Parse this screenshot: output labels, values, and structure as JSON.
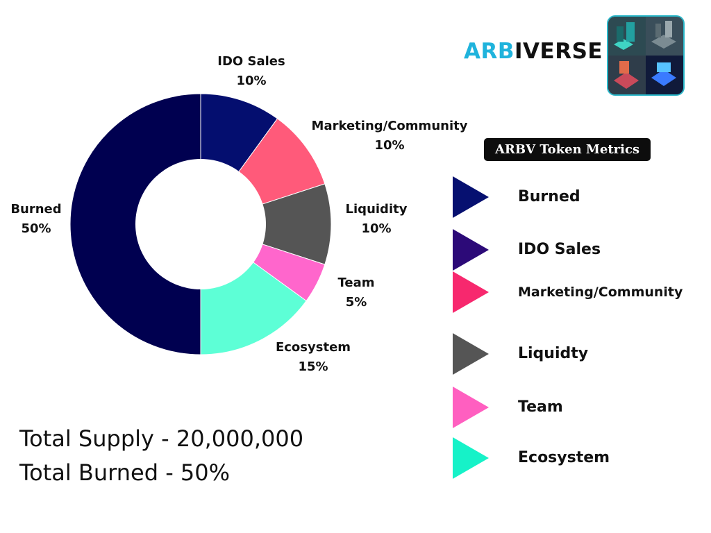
{
  "brand": {
    "part1": "ARB",
    "part2": "IVERSE"
  },
  "legend": {
    "title": "ARBV Token Metrics",
    "items": [
      {
        "label": "Burned",
        "color": "#061070"
      },
      {
        "label": "IDO Sales",
        "color": "#2c0a78"
      },
      {
        "label": "Marketing/Community",
        "color": "#f7286e"
      },
      {
        "label": "Liquidty",
        "color": "#555555"
      },
      {
        "label": "Team",
        "color": "#ff5fc0"
      },
      {
        "label": "Ecosystem",
        "color": "#16f2c8"
      }
    ]
  },
  "summary": {
    "total_supply": "Total Supply - 20,000,000",
    "total_burned": "Total Burned - 50%"
  },
  "chart_data": {
    "type": "pie",
    "style": "donut",
    "title": "",
    "slices": [
      {
        "label": "IDO Sales",
        "value": 10,
        "value_label": "10%",
        "color": "#040e6f"
      },
      {
        "label": "Marketing/Community",
        "value": 10,
        "value_label": "10%",
        "color": "#ff5a7a"
      },
      {
        "label": "Liquidity",
        "value": 10,
        "value_label": "10%",
        "color": "#555555"
      },
      {
        "label": "Team",
        "value": 5,
        "value_label": "5%",
        "color": "#ff66cc"
      },
      {
        "label": "Ecosystem",
        "value": 15,
        "value_label": "15%",
        "color": "#5dffd6"
      },
      {
        "label": "Burned",
        "value": 50,
        "value_label": "50%",
        "color": "#000050"
      }
    ]
  }
}
